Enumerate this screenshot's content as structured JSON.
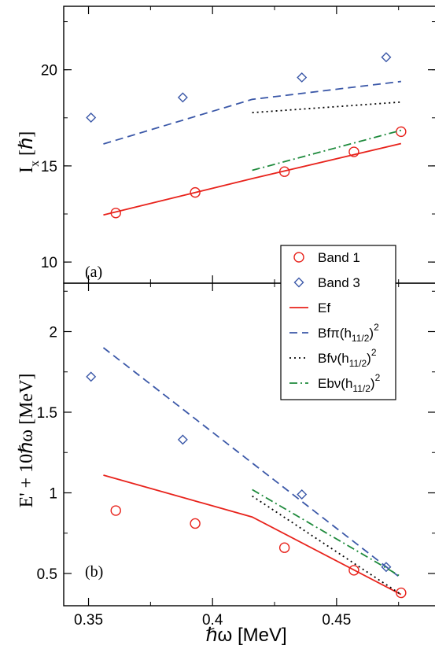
{
  "chart_data": [
    {
      "type": "line",
      "panel_label": "(a)",
      "ylabel_main": "I",
      "ylabel_sub": "x",
      "ylabel_unit": "[ℏ]",
      "ylim": [
        8.9,
        23.3
      ],
      "yticks": [
        10,
        15,
        20
      ],
      "xlim": [
        0.34,
        0.49
      ],
      "series": [
        {
          "name": "Band 1",
          "kind": "circle",
          "color": "#e8231c",
          "x": [
            0.361,
            0.393,
            0.429,
            0.457,
            0.476
          ],
          "y": [
            12.55,
            13.62,
            14.7,
            15.73,
            16.78
          ]
        },
        {
          "name": "Band 3",
          "kind": "diamond",
          "color": "#3b58a8",
          "x": [
            0.351,
            0.388,
            0.436,
            0.47
          ],
          "y": [
            17.51,
            18.56,
            19.6,
            20.65
          ]
        },
        {
          "name": "Ef",
          "kind": "solid",
          "color": "#e8231c",
          "x": [
            0.356,
            0.416,
            0.476
          ],
          "y": [
            12.45,
            14.34,
            16.16
          ]
        },
        {
          "name": "Bfπ(h11/2)²",
          "kind": "dashed",
          "color": "#3b58a8",
          "x": [
            0.356,
            0.416,
            0.476
          ],
          "y": [
            16.14,
            18.46,
            19.39
          ]
        },
        {
          "name": "Bfν(h11/2)²",
          "kind": "dotted",
          "color": "#000000",
          "x": [
            0.416,
            0.476
          ],
          "y": [
            17.77,
            18.32
          ]
        },
        {
          "name": "Ebν(h11/2)²",
          "kind": "dashdot",
          "color": "#1e8a3c",
          "x": [
            0.416,
            0.476
          ],
          "y": [
            14.77,
            16.85
          ]
        }
      ]
    },
    {
      "type": "line",
      "panel_label": "(b)",
      "ylabel": "E' + 10ℏω [MeV]",
      "xlabel": "ℏω [MeV]",
      "ylim": [
        0.3,
        2.3
      ],
      "yticks": [
        0.5,
        1,
        1.5,
        2
      ],
      "ytick_labels": [
        "0.5",
        "1",
        "1.5",
        "2"
      ],
      "xlim": [
        0.34,
        0.49
      ],
      "xticks": [
        0.35,
        0.4,
        0.45
      ],
      "xtick_labels": [
        "0.35",
        "0.4",
        "0.45"
      ],
      "series": [
        {
          "name": "Band 1",
          "kind": "circle",
          "color": "#e8231c",
          "x": [
            0.361,
            0.393,
            0.429,
            0.457,
            0.476
          ],
          "y": [
            0.89,
            0.81,
            0.66,
            0.52,
            0.38
          ]
        },
        {
          "name": "Band 3",
          "kind": "diamond",
          "color": "#3b58a8",
          "x": [
            0.351,
            0.388,
            0.436,
            0.47
          ],
          "y": [
            1.72,
            1.33,
            0.99,
            0.54
          ]
        },
        {
          "name": "Ef",
          "kind": "solid",
          "color": "#e8231c",
          "x": [
            0.356,
            0.416,
            0.476
          ],
          "y": [
            1.11,
            0.85,
            0.37
          ]
        },
        {
          "name": "Bfπ(h11/2)²",
          "kind": "dashed",
          "color": "#3b58a8",
          "x": [
            0.356,
            0.476
          ],
          "y": [
            1.9,
            0.47
          ]
        },
        {
          "name": "Bfν(h11/2)²",
          "kind": "dotted",
          "color": "#000000",
          "x": [
            0.416,
            0.476
          ],
          "y": [
            0.98,
            0.37
          ]
        },
        {
          "name": "Ebν(h11/2)²",
          "kind": "dashdot",
          "color": "#1e8a3c",
          "x": [
            0.416,
            0.476
          ],
          "y": [
            1.02,
            0.48
          ]
        }
      ]
    }
  ],
  "legend": {
    "placement": "top-panel bottom-right, overlapping both panels",
    "entries": [
      {
        "kind": "circle",
        "color": "#e8231c",
        "label": "Band 1"
      },
      {
        "kind": "diamond",
        "color": "#3b58a8",
        "label": "Band 3"
      },
      {
        "kind": "solid",
        "color": "#e8231c",
        "label": "Ef"
      },
      {
        "kind": "dashed",
        "color": "#3b58a8",
        "label": "Bfπ(h",
        "sub": "11/2",
        "tail": ")",
        "sup": "2"
      },
      {
        "kind": "dotted",
        "color": "#000000",
        "label": "Bfν(h",
        "sub": "11/2",
        "tail": ")",
        "sup": "2"
      },
      {
        "kind": "dashdot",
        "color": "#1e8a3c",
        "label": "Ebν(h",
        "sub": "11/2",
        "tail": ")",
        "sup": "2"
      }
    ]
  }
}
